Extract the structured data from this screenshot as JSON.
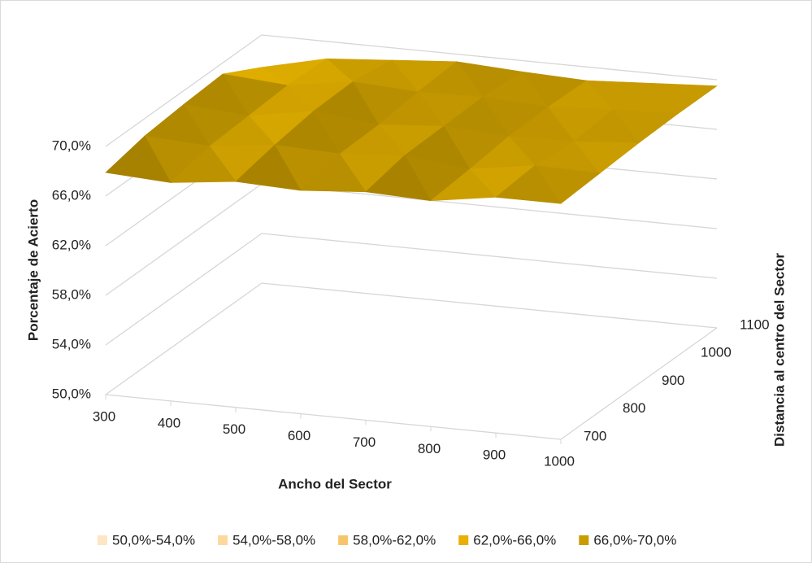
{
  "chart_data": {
    "type": "surface",
    "x_label": "Ancho del Sector",
    "y_label": "Distancia  al centro del Sector",
    "z_label": "Porcentaje de Acierto",
    "categories": [
      "300",
      "400",
      "500",
      "600",
      "700",
      "800",
      "900",
      "1000"
    ],
    "series": [
      {
        "name": "700",
        "values": [
          67.9,
          67.6,
          68.2,
          68.0,
          68.4,
          68.2,
          69.0,
          69.0
        ]
      },
      {
        "name": "800",
        "values": [
          68.6,
          68.3,
          68.9,
          68.7,
          69.1,
          68.5,
          69.3,
          69.2
        ]
      },
      {
        "name": "900",
        "values": [
          68.9,
          68.5,
          69.4,
          68.8,
          69.2,
          68.9,
          69.0,
          69.4
        ]
      },
      {
        "name": "1000",
        "values": [
          69.1,
          68.7,
          69.5,
          69.2,
          69.3,
          69.0,
          69.3,
          69.5
        ]
      },
      {
        "name": "1100",
        "values": [
          67.4,
          68.6,
          69.0,
          69.4,
          69.1,
          68.9,
          69.2,
          69.5
        ]
      }
    ],
    "zlim": [
      50,
      70
    ],
    "zticks": [
      {
        "value": 50,
        "label": "50,0%"
      },
      {
        "value": 54,
        "label": "54,0%"
      },
      {
        "value": 58,
        "label": "58,0%"
      },
      {
        "value": 62,
        "label": "62,0%"
      },
      {
        "value": 66,
        "label": "66,0%"
      },
      {
        "value": 70,
        "label": "70,0%"
      }
    ],
    "legend": [
      {
        "label": "50,0%-54,0%",
        "color": "#fde6c4"
      },
      {
        "label": "54,0%-58,0%",
        "color": "#fdd89c"
      },
      {
        "label": "58,0%-62,0%",
        "color": "#f7c66a"
      },
      {
        "label": "62,0%-66,0%",
        "color": "#e9b000"
      },
      {
        "label": "66,0%-70,0%",
        "color": "#c99c00"
      }
    ],
    "grid": true
  }
}
